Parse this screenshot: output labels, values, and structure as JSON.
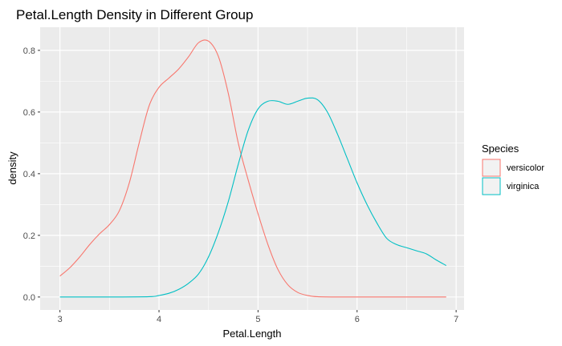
{
  "chart_data": {
    "type": "line",
    "title": "Petal.Length Density in Different Group",
    "xlabel": "Petal.Length",
    "ylabel": "density",
    "xlim": [
      2.8,
      7.08
    ],
    "ylim": [
      -0.042,
      0.875
    ],
    "x_ticks": [
      3,
      4,
      5,
      6,
      7
    ],
    "y_ticks": [
      0.0,
      0.2,
      0.4,
      0.6,
      0.8
    ],
    "x_tick_labels": [
      "3",
      "4",
      "5",
      "6",
      "7"
    ],
    "y_tick_labels": [
      "0.0",
      "0.2",
      "0.4",
      "0.6",
      "0.8"
    ],
    "grid": true,
    "panel_background": "#ebebeb",
    "legend": {
      "title": "Species",
      "placement": "right"
    },
    "series": [
      {
        "name": "versicolor",
        "color": "#f8766d",
        "x": [
          3.0,
          3.1,
          3.2,
          3.3,
          3.4,
          3.5,
          3.6,
          3.7,
          3.8,
          3.9,
          4.0,
          4.1,
          4.2,
          4.3,
          4.4,
          4.5,
          4.6,
          4.7,
          4.8,
          4.9,
          5.0,
          5.1,
          5.2,
          5.3,
          5.4,
          5.5,
          5.6,
          5.8,
          6.0,
          6.5,
          6.9
        ],
        "y": [
          0.068,
          0.095,
          0.13,
          0.17,
          0.205,
          0.235,
          0.28,
          0.37,
          0.5,
          0.62,
          0.68,
          0.71,
          0.74,
          0.78,
          0.825,
          0.83,
          0.78,
          0.66,
          0.5,
          0.38,
          0.27,
          0.17,
          0.09,
          0.04,
          0.015,
          0.005,
          0.001,
          0.0,
          0.0,
          0.0,
          0.0
        ]
      },
      {
        "name": "virginica",
        "color": "#00bfc4",
        "x": [
          3.0,
          3.5,
          3.9,
          4.0,
          4.1,
          4.2,
          4.3,
          4.4,
          4.5,
          4.6,
          4.7,
          4.8,
          4.9,
          5.0,
          5.1,
          5.2,
          5.3,
          5.4,
          5.5,
          5.6,
          5.7,
          5.8,
          5.9,
          6.0,
          6.1,
          6.2,
          6.3,
          6.4,
          6.5,
          6.6,
          6.7,
          6.8,
          6.9
        ],
        "y": [
          0.0,
          0.0,
          0.001,
          0.005,
          0.012,
          0.025,
          0.045,
          0.075,
          0.13,
          0.21,
          0.31,
          0.43,
          0.54,
          0.61,
          0.635,
          0.635,
          0.625,
          0.635,
          0.645,
          0.64,
          0.6,
          0.53,
          0.45,
          0.37,
          0.3,
          0.24,
          0.19,
          0.17,
          0.16,
          0.15,
          0.14,
          0.12,
          0.102
        ]
      }
    ]
  }
}
